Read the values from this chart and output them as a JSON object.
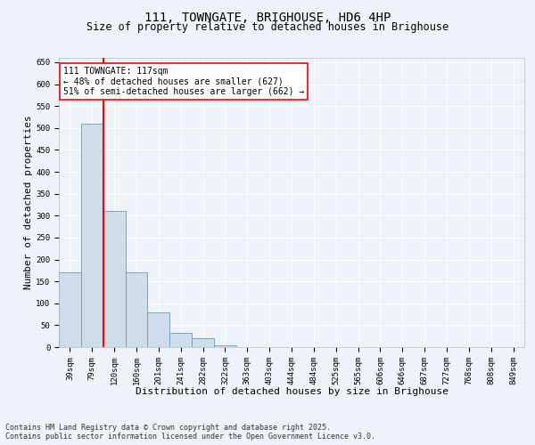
{
  "title": "111, TOWNGATE, BRIGHOUSE, HD6 4HP",
  "subtitle": "Size of property relative to detached houses in Brighouse",
  "xlabel": "Distribution of detached houses by size in Brighouse",
  "ylabel": "Number of detached properties",
  "categories": [
    "39sqm",
    "79sqm",
    "120sqm",
    "160sqm",
    "201sqm",
    "241sqm",
    "282sqm",
    "322sqm",
    "363sqm",
    "403sqm",
    "444sqm",
    "484sqm",
    "525sqm",
    "565sqm",
    "606sqm",
    "646sqm",
    "687sqm",
    "727sqm",
    "768sqm",
    "808sqm",
    "849sqm"
  ],
  "values": [
    170,
    510,
    310,
    170,
    80,
    33,
    20,
    5,
    0,
    0,
    0,
    0,
    0,
    0,
    0,
    0,
    0,
    0,
    0,
    0,
    0
  ],
  "bar_color": "#cfdcec",
  "bar_edge_color": "#6a9cbf",
  "red_line_label": "111 TOWNGATE: 117sqm",
  "annotation_line1": "← 48% of detached houses are smaller (627)",
  "annotation_line2": "51% of semi-detached houses are larger (662) →",
  "ylim": [
    0,
    660
  ],
  "yticks": [
    0,
    50,
    100,
    150,
    200,
    250,
    300,
    350,
    400,
    450,
    500,
    550,
    600,
    650
  ],
  "background_color": "#eef2f9",
  "grid_color": "#ffffff",
  "footer_line1": "Contains HM Land Registry data © Crown copyright and database right 2025.",
  "footer_line2": "Contains public sector information licensed under the Open Government Licence v3.0.",
  "title_fontsize": 10,
  "subtitle_fontsize": 8.5,
  "axis_label_fontsize": 8,
  "tick_fontsize": 6.5,
  "annotation_fontsize": 7,
  "footer_fontsize": 6
}
